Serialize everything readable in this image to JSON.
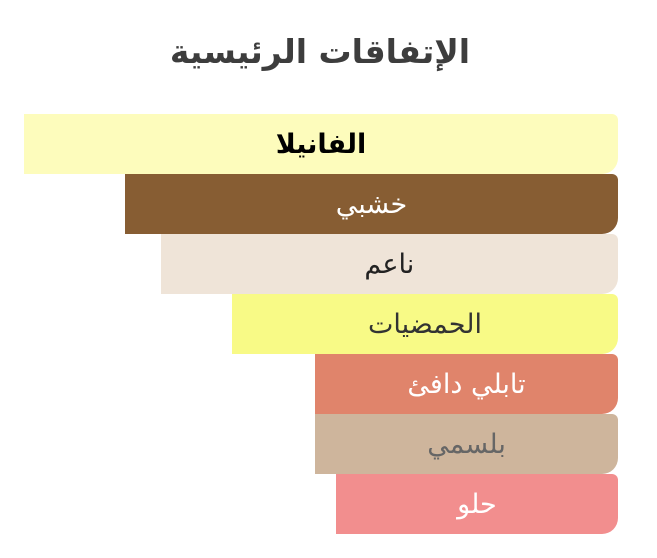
{
  "chart_data": {
    "type": "bar",
    "orientation": "horizontal",
    "title": "الإتفاقات الرئيسية",
    "categories": [
      "الفانيلا",
      "خشبي",
      "ناعم",
      "الحمضيات",
      "تابلي دافئ",
      "بلسمي",
      "حلو"
    ],
    "values": [
      100,
      83,
      77,
      65,
      51,
      51,
      47.5
    ],
    "colors": [
      "#FDFCBC",
      "#875D33",
      "#EFE4D8",
      "#F8FA86",
      "#E0846B",
      "#CEB59C",
      "#F28E8E"
    ],
    "text_colors": [
      "#000000",
      "#FFFFFF",
      "#222222",
      "#333333",
      "#FFFFFF",
      "#666666",
      "#FFFFFF"
    ],
    "xlim": [
      0,
      100
    ],
    "grid": false
  }
}
